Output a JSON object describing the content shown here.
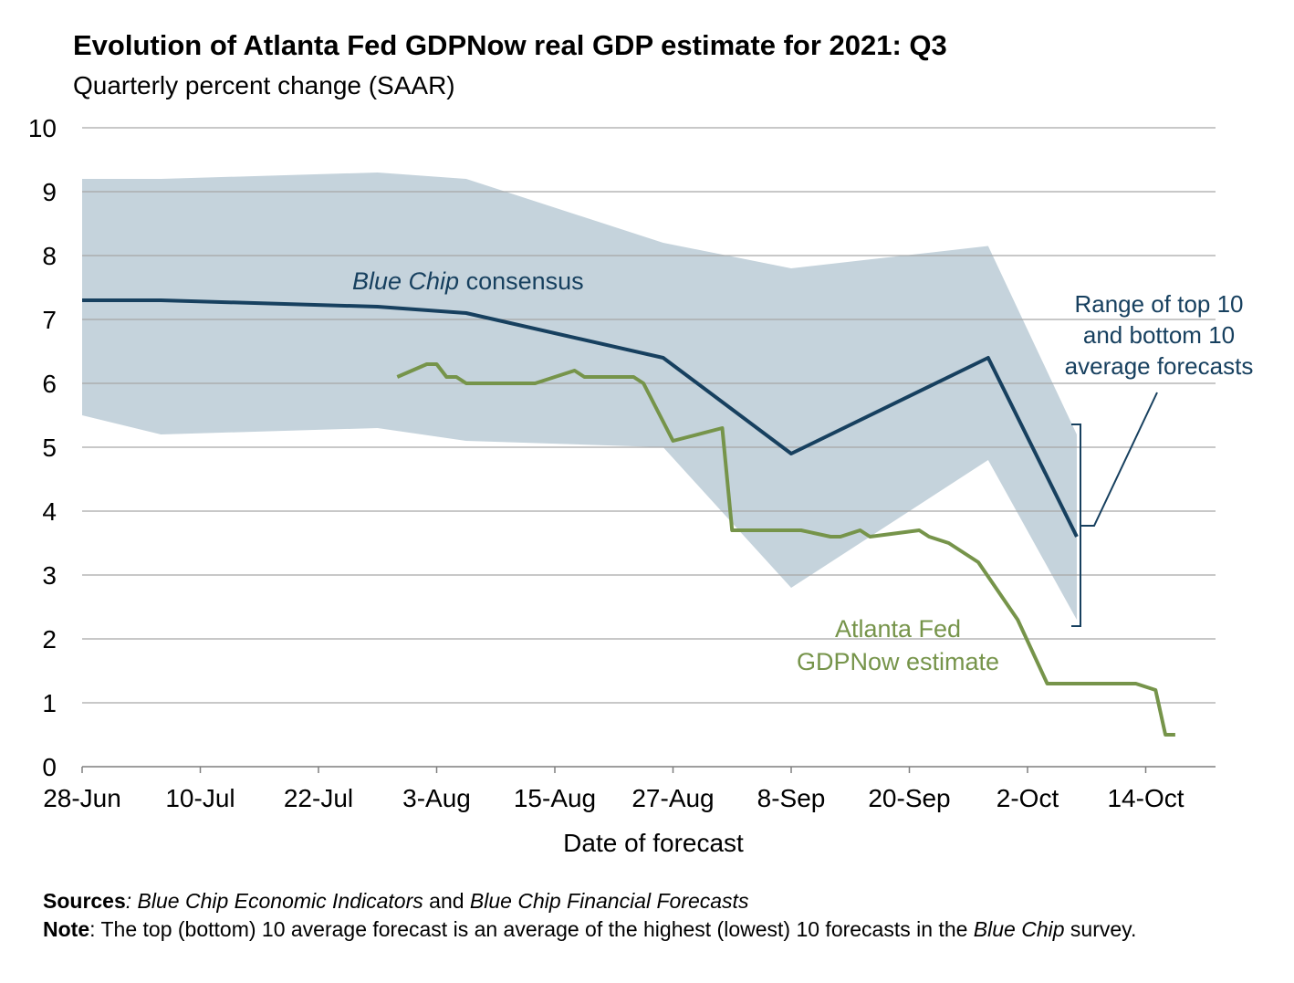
{
  "chart_data": {
    "type": "line",
    "title": "Evolution of Atlanta Fed GDPNow real GDP estimate for 2021: Q3",
    "subtitle": "Quarterly percent change (SAAR)",
    "xlabel": "Date of forecast",
    "ylabel": "",
    "ylim": [
      0,
      10
    ],
    "yticks": [
      0,
      1,
      2,
      3,
      4,
      5,
      6,
      7,
      8,
      9,
      10
    ],
    "x_day_range": [
      0,
      113
    ],
    "xticks": [
      {
        "day": 0,
        "label": "28-Jun"
      },
      {
        "day": 12,
        "label": "10-Jul"
      },
      {
        "day": 24,
        "label": "22-Jul"
      },
      {
        "day": 36,
        "label": "3-Aug"
      },
      {
        "day": 48,
        "label": "15-Aug"
      },
      {
        "day": 60,
        "label": "27-Aug"
      },
      {
        "day": 72,
        "label": "8-Sep"
      },
      {
        "day": 84,
        "label": "20-Sep"
      },
      {
        "day": 96,
        "label": "2-Oct"
      },
      {
        "day": 108,
        "label": "14-Oct"
      }
    ],
    "range_band": {
      "name": "Range of top 10 and bottom 10 average forecasts",
      "color": "#c5d3dc",
      "x": [
        0,
        8,
        30,
        39,
        59,
        72,
        92,
        101
      ],
      "upper": [
        9.2,
        9.2,
        9.3,
        9.2,
        8.2,
        7.8,
        8.15,
        5.2
      ],
      "lower": [
        5.5,
        5.2,
        5.3,
        5.1,
        5.0,
        2.8,
        4.8,
        2.3
      ]
    },
    "series": [
      {
        "name": "Blue Chip consensus",
        "color": "#17405f",
        "x": [
          0,
          8,
          30,
          39,
          59,
          72,
          92,
          101
        ],
        "values": [
          7.3,
          7.3,
          7.2,
          7.1,
          6.4,
          4.9,
          6.4,
          3.6
        ]
      },
      {
        "name": "Atlanta Fed GDPNow estimate",
        "color": "#76944a",
        "x": [
          32,
          35,
          36,
          37,
          38,
          39,
          40,
          46,
          50,
          51,
          56,
          57,
          60,
          65,
          66,
          73,
          76,
          77,
          79,
          80,
          85,
          86,
          88,
          91,
          95,
          98,
          106,
          107,
          109,
          110,
          111
        ],
        "values": [
          6.1,
          6.3,
          6.3,
          6.1,
          6.1,
          6.0,
          6.0,
          6.0,
          6.2,
          6.1,
          6.1,
          6.0,
          5.1,
          5.3,
          3.7,
          3.7,
          3.6,
          3.6,
          3.7,
          3.6,
          3.7,
          3.6,
          3.5,
          3.2,
          2.3,
          1.3,
          1.3,
          1.3,
          1.2,
          0.5,
          0.5
        ]
      }
    ],
    "annotations": {
      "bluechip_italic": "Blue Chip",
      "bluechip_rest": " consensus",
      "atlanta_line1": "Atlanta Fed",
      "atlanta_line2": "GDPNow estimate",
      "range_line1": "Range of top 10",
      "range_line2": "and bottom 10",
      "range_line3": "average forecasts"
    }
  },
  "footer": {
    "sources_label": "Sources",
    "sources_colon": ": ",
    "sources_pub1": "Blue Chip Economic Indicators",
    "sources_and": " and ",
    "sources_pub2": "Blue Chip Financial Forecasts",
    "note_label": "Note",
    "note_text1": ": The top (bottom) 10 average forecast is an average of the highest (lowest) 10 forecasts in the ",
    "note_italic": "Blue Chip",
    "note_text2": " survey."
  }
}
